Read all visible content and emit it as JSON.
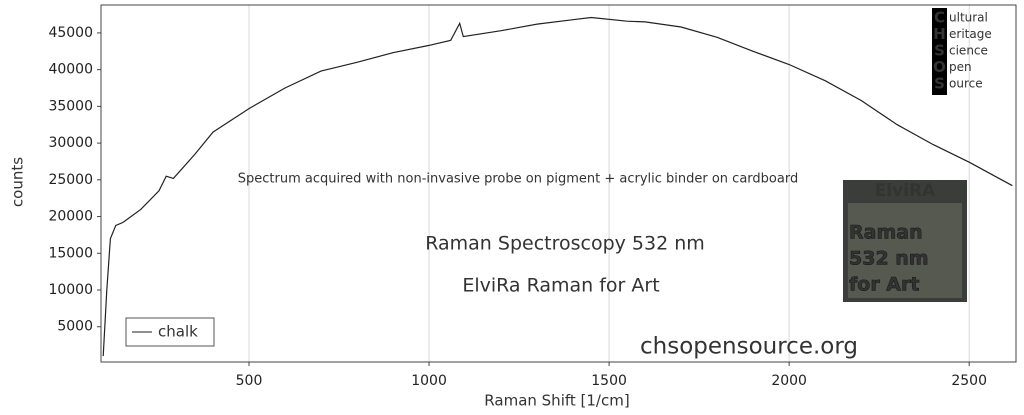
{
  "chart_data": {
    "type": "line",
    "x_label": "Raman Shift [1/cm]",
    "y_label": "counts",
    "x": [
      95,
      105,
      115,
      130,
      150,
      200,
      250,
      270,
      290,
      350,
      400,
      500,
      600,
      700,
      800,
      900,
      1000,
      1060,
      1085,
      1095,
      1200,
      1300,
      1400,
      1450,
      1550,
      1600,
      1700,
      1800,
      1900,
      2000,
      2100,
      2200,
      2300,
      2400,
      2500,
      2620
    ],
    "series": [
      {
        "name": "chalk",
        "color": "#222222",
        "values": [
          1000,
          10000,
          17000,
          18800,
          19200,
          21000,
          23500,
          25500,
          25200,
          28500,
          31500,
          34700,
          37500,
          39800,
          41000,
          42300,
          43300,
          44000,
          46300,
          44500,
          45300,
          46200,
          46800,
          47100,
          46600,
          46500,
          45800,
          44400,
          42500,
          40700,
          38500,
          35800,
          32500,
          29800,
          27400,
          24200
        ]
      }
    ],
    "xlim": [
      89,
      2630
    ],
    "ylim": [
      200,
      48800
    ],
    "xticks": [
      500,
      1000,
      1500,
      2000,
      2500
    ],
    "yticks": [
      5000,
      10000,
      15000,
      20000,
      25000,
      30000,
      35000,
      40000,
      45000
    ],
    "grid": "x",
    "legend": "lower-left",
    "annotations": [
      "Spectrum acquired with non-invasive probe on pigment + acrylic binder on cardboard",
      "Raman Spectroscopy 532 nm",
      "ElviRa Raman for Art",
      "chsopensource.org"
    ]
  },
  "logo": {
    "letters": [
      "C",
      "H",
      "S",
      "O",
      "S"
    ],
    "words": [
      "ultural",
      "eritage",
      "cience",
      "pen",
      "ource"
    ]
  },
  "badge": {
    "title": "ElviRA",
    "lines": [
      "Raman",
      "532 nm",
      "for Art"
    ]
  }
}
